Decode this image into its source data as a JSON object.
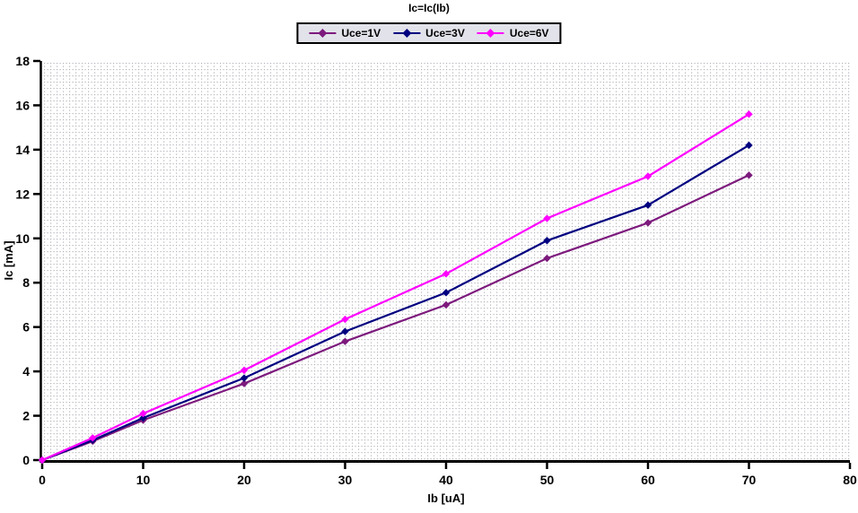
{
  "title": "Ic=Ic(Ib)",
  "chart_data": {
    "type": "line",
    "title": "Ic=Ic(Ib)",
    "xlabel": "Ib [uA]",
    "ylabel": "Ic [mA]",
    "xlim": [
      0,
      80
    ],
    "ylim": [
      0,
      18
    ],
    "x_ticks": [
      0,
      10,
      20,
      30,
      40,
      50,
      60,
      70,
      80
    ],
    "y_ticks": [
      0,
      2,
      4,
      6,
      8,
      10,
      12,
      14,
      16,
      18
    ],
    "grid": "dotted-mesh",
    "grid_color": "#b4b4bc",
    "legend_position": "top-center",
    "legend_background": "#e2e2ea",
    "marker": "diamond",
    "x": [
      0,
      5,
      10,
      20,
      30,
      40,
      50,
      60,
      70
    ],
    "series": [
      {
        "name": "Uce=1V",
        "color": "#7d1a7d",
        "values": [
          0,
          0.85,
          1.8,
          3.45,
          5.35,
          7.0,
          9.1,
          10.7,
          12.85
        ]
      },
      {
        "name": "Uce=3V",
        "color": "#000080",
        "values": [
          0,
          0.9,
          1.9,
          3.7,
          5.8,
          7.55,
          9.9,
          11.5,
          14.2
        ]
      },
      {
        "name": "Uce=6V",
        "color": "#ff00ff",
        "values": [
          0,
          1.0,
          2.1,
          4.05,
          6.35,
          8.4,
          10.9,
          12.8,
          15.6
        ]
      }
    ]
  }
}
